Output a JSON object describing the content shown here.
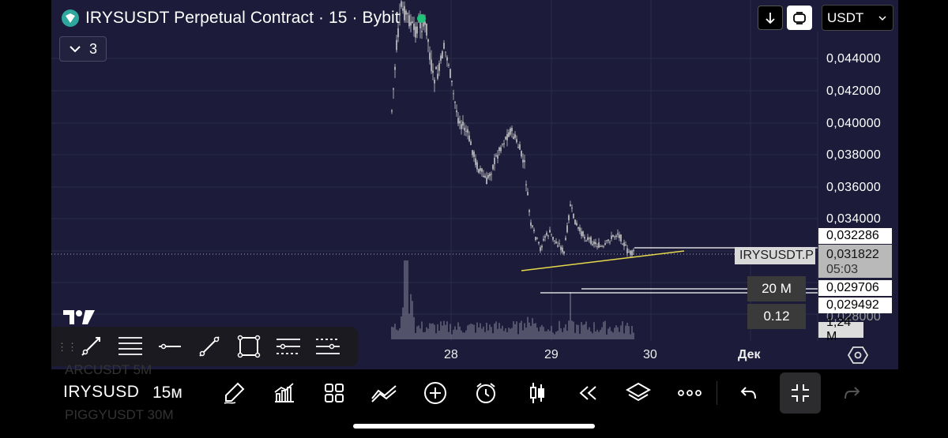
{
  "header": {
    "title": "IRYSUSDT Perpetual Contract · 15 · Bybit",
    "indicator_count": "3",
    "currency": "USDT"
  },
  "price_axis": {
    "labels": [
      "0,044000",
      "0,042000",
      "0,040000",
      "0,038000",
      "0,036000",
      "0,034000",
      "0,028000"
    ],
    "tags": {
      "high_line": "0,032286",
      "current_price": "0,031822",
      "countdown": "05:03",
      "line_a": "0,029706",
      "line_b": "0,029492",
      "volume": "1,24 M"
    },
    "symbol_tag": "IRYSUSDT.P"
  },
  "time_axis": {
    "labels": [
      "28",
      "29",
      "30",
      "Дек"
    ]
  },
  "panel_labels": {
    "volume_scale": "20 M",
    "ratio": "0.12"
  },
  "brand": "TradingView",
  "draw_toolbar": {
    "tools": [
      "trend-line",
      "horizontal-ray",
      "horizontal-line",
      "ray",
      "rectangle",
      "long-position",
      "short-position"
    ]
  },
  "bottom_bar": {
    "symbol": "IRYSUSDT",
    "interval": "15м",
    "ghost_rows": [
      "ARCUSDT  5M",
      "PIGGYUSDT  30M"
    ]
  },
  "colors": {
    "chart_bg": "#1c1c3a",
    "candle": "#c8c8c8",
    "trend_line": "#e6d84a",
    "accent_logo": "#2ea89c"
  }
}
